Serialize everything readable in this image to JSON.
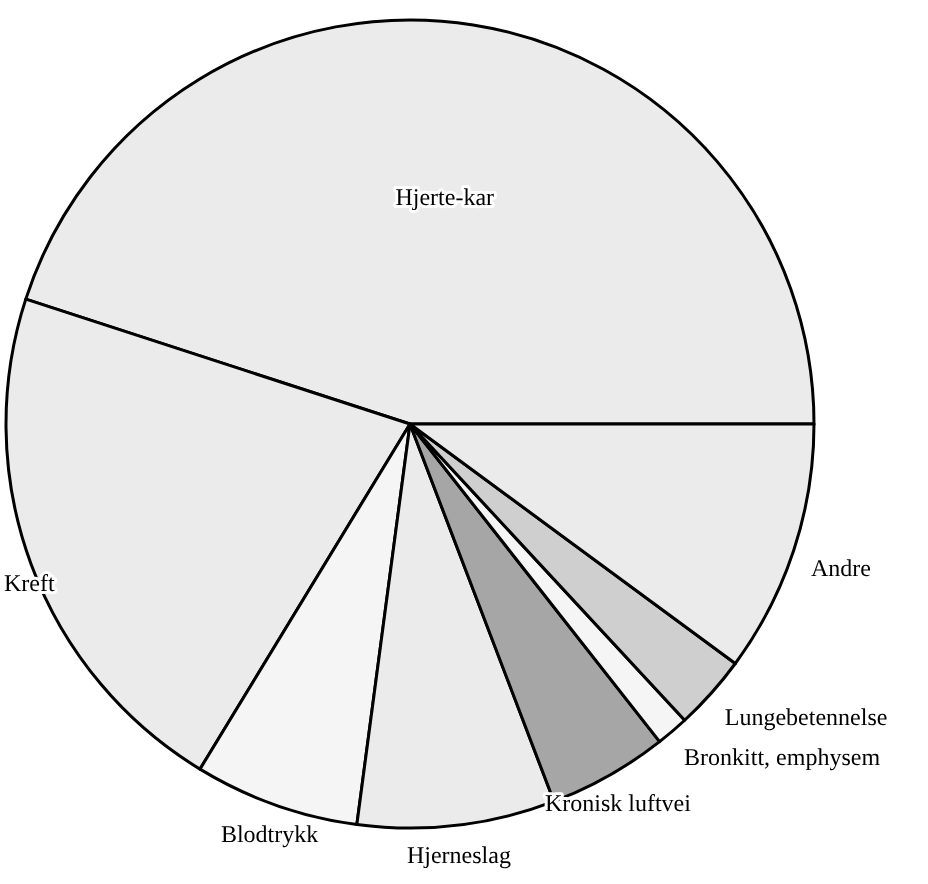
{
  "chart_data": {
    "type": "pie",
    "categories": [
      "Hjerte-kar",
      "Kreft",
      "Blodtrykk",
      "Hjerneslag",
      "Kronisk luftvei",
      "Bronkitt, emphysem",
      "Lungebetennelse",
      "Andre"
    ],
    "values": [
      45,
      21.3,
      6.6,
      7.9,
      4.8,
      1.3,
      3,
      10.1
    ],
    "colors": [
      "#ebebeb",
      "#ebebeb",
      "#f5f5f5",
      "#ebebeb",
      "#a6a6a6",
      "#f5f5f5",
      "#cfcfcf",
      "#ebebeb"
    ]
  }
}
